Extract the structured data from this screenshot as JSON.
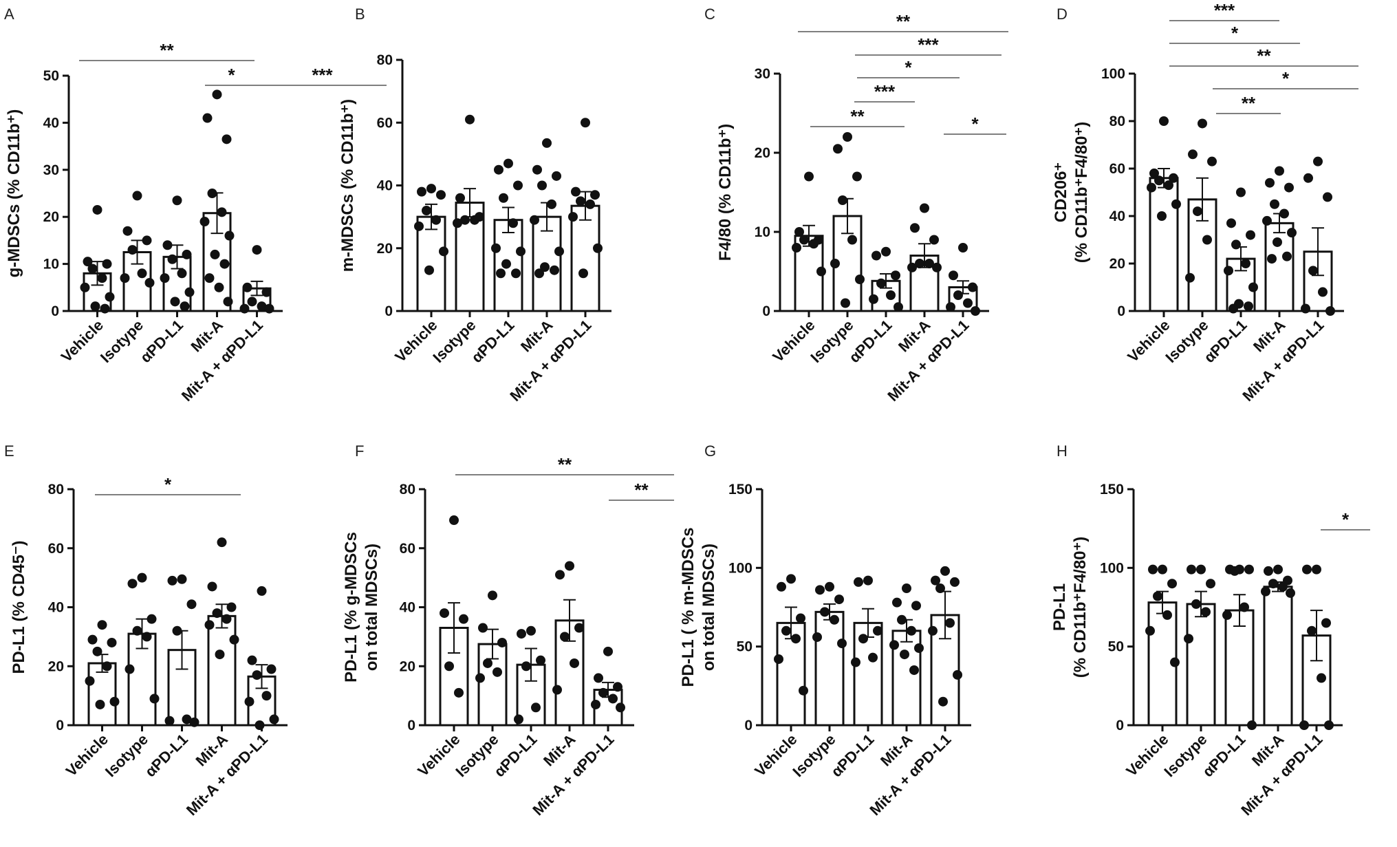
{
  "chart_data": [
    {
      "panel": "A",
      "type": "bar",
      "ylabel": "g-MDSCs (% CD11b⁺)",
      "ylim": [
        0,
        50
      ],
      "yticks": [
        0,
        10,
        20,
        30,
        40,
        50
      ],
      "categories": [
        "Vehicle",
        "Isotype",
        "αPD-L1",
        "Mit-A",
        "Mit-A + αPD-L1"
      ],
      "means": [
        8,
        12.5,
        11.5,
        20.8,
        4.8
      ],
      "sem": [
        2.5,
        2.5,
        2.5,
        4.3,
        1.5
      ],
      "points": [
        [
          21.5,
          10.5,
          10,
          9,
          7,
          5,
          3,
          1,
          0.5
        ],
        [
          24.5,
          17,
          15,
          13,
          8,
          7,
          6
        ],
        [
          23.5,
          14,
          12,
          11,
          8,
          7,
          4,
          2,
          1
        ],
        [
          46,
          41,
          36.5,
          25,
          21,
          19,
          16,
          12,
          10,
          7,
          5,
          2
        ],
        [
          13,
          5,
          4,
          2,
          1,
          0.5,
          0.5
        ]
      ],
      "significance": [
        {
          "from": "Vehicle",
          "to": "Mit-A",
          "label": "**"
        },
        {
          "from": "αPD-L1",
          "to": "Mit-A",
          "label": "*"
        },
        {
          "from": "Mit-A",
          "to": "Mit-A + αPD-L1",
          "label": "***"
        }
      ]
    },
    {
      "panel": "B",
      "type": "bar",
      "ylabel": "m-MDSCs (% CD11b⁺)",
      "ylim": [
        0,
        80
      ],
      "yticks": [
        0,
        20,
        40,
        60,
        80
      ],
      "categories": [
        "Vehicle",
        "Isotype",
        "αPD-L1",
        "Mit-A",
        "Mit-A + αPD-L1"
      ],
      "means": [
        30,
        34.5,
        29,
        30,
        33.5
      ],
      "sem": [
        4,
        4.5,
        4,
        4.5,
        4.5
      ],
      "points": [
        [
          39,
          38,
          37,
          32,
          29,
          27,
          19,
          13
        ],
        [
          61,
          36,
          30,
          29,
          29,
          28
        ],
        [
          47,
          45,
          40,
          36,
          28,
          20,
          19,
          15,
          12,
          12
        ],
        [
          53.5,
          45,
          43,
          40,
          34,
          29,
          19,
          14,
          13,
          12
        ],
        [
          60,
          38,
          37,
          35,
          34,
          30,
          20,
          12
        ]
      ],
      "significance": []
    },
    {
      "panel": "C",
      "type": "bar",
      "ylabel": "F4/80 (% CD11b⁺)",
      "ylim": [
        0,
        30
      ],
      "yticks": [
        0,
        10,
        20,
        30
      ],
      "categories": [
        "Vehicle",
        "Isotype",
        "αPD-L1",
        "Mit-A",
        "Mit-A + αPD-L1"
      ],
      "means": [
        9.5,
        12,
        3.8,
        7,
        3
      ],
      "sem": [
        1.3,
        2.2,
        0.9,
        1.5,
        0.8
      ],
      "points": [
        [
          17,
          10,
          9,
          9,
          8.5,
          8,
          5
        ],
        [
          22,
          20.5,
          17,
          14,
          9,
          6,
          4,
          1
        ],
        [
          7.5,
          7,
          4.5,
          3.5,
          2,
          1.5,
          0.5
        ],
        [
          13,
          10.5,
          9,
          6,
          6,
          5.5,
          5.5
        ],
        [
          8,
          4.5,
          3,
          2,
          1,
          0.5,
          0
        ]
      ],
      "significance": [
        {
          "from": "Vehicle",
          "to": "Mit-A + αPD-L1",
          "label": "**"
        },
        {
          "from": "Isotype",
          "to": "Mit-A + αPD-L1",
          "label": "***"
        },
        {
          "from": "Isotype",
          "to": "Mit-A",
          "label": "*"
        },
        {
          "from": "Isotype",
          "to": "αPD-L1",
          "label": "***"
        },
        {
          "from": "Vehicle",
          "to": "αPD-L1",
          "label": "**"
        },
        {
          "from": "Mit-A",
          "to": "Mit-A + αPD-L1",
          "label": "*"
        }
      ]
    },
    {
      "panel": "D",
      "type": "bar",
      "ylabel": "CD206⁺",
      "ylabel2": "(% CD11b⁺F4/80⁺)",
      "ylim": [
        0,
        100
      ],
      "yticks": [
        0,
        20,
        40,
        60,
        80,
        100
      ],
      "categories": [
        "Vehicle",
        "Isotype",
        "αPD-L1",
        "Mit-A",
        "Mit-A + αPD-L1"
      ],
      "means": [
        56,
        47,
        22,
        37,
        25
      ],
      "sem": [
        4,
        9,
        5,
        4,
        10
      ],
      "points": [
        [
          80,
          58,
          56,
          55,
          53,
          52,
          45,
          40
        ],
        [
          79,
          66,
          63,
          42,
          30,
          14
        ],
        [
          50,
          37,
          32,
          28,
          20,
          17,
          10,
          3,
          2,
          1
        ],
        [
          59,
          54,
          52,
          45,
          41,
          38,
          33,
          29,
          23,
          22
        ],
        [
          63,
          56,
          48,
          17,
          8,
          1,
          0
        ]
      ],
      "significance": [
        {
          "from": "Vehicle",
          "to": "Mit-A",
          "label": "***"
        },
        {
          "from": "Vehicle",
          "to": "Mit-A",
          "label": "*"
        },
        {
          "from": "Vehicle",
          "to": "Mit-A + αPD-L1",
          "label": "**"
        },
        {
          "from": "Isotype",
          "to": "Mit-A + αPD-L1",
          "label": "*"
        },
        {
          "from": "Isotype",
          "to": "αPD-L1",
          "label": "**"
        }
      ]
    },
    {
      "panel": "E",
      "type": "bar",
      "ylabel": "PD-L1 (% CD45⁻)",
      "ylim": [
        0,
        80
      ],
      "yticks": [
        0,
        20,
        40,
        60,
        80
      ],
      "categories": [
        "Vehicle",
        "Isotype",
        "αPD-L1",
        "Mit-A",
        "Mit-A + αPD-L1"
      ],
      "means": [
        21,
        31,
        25.5,
        37,
        16.5
      ],
      "sem": [
        3,
        5,
        6.5,
        4,
        4
      ],
      "points": [
        [
          34,
          29,
          28,
          25,
          20,
          15,
          8,
          7
        ],
        [
          50,
          48,
          36,
          32,
          30,
          19,
          9
        ],
        [
          49.5,
          49,
          41,
          32,
          2,
          1.5,
          1
        ],
        [
          62,
          47,
          40,
          38,
          36,
          34,
          29,
          24
        ],
        [
          45.5,
          22,
          19,
          17,
          10,
          8,
          2,
          0
        ]
      ],
      "significance": [
        {
          "from": "Vehicle",
          "to": "Mit-A",
          "label": "*"
        }
      ]
    },
    {
      "panel": "F",
      "type": "bar",
      "ylabel": "PD-L1 (% g-MDSCs",
      "ylabel2": "on total MDSCs)",
      "ylim": [
        0,
        80
      ],
      "yticks": [
        0,
        20,
        40,
        60,
        80
      ],
      "categories": [
        "Vehicle",
        "Isotype",
        "αPD-L1",
        "Mit-A",
        "Mit-A + αPD-L1"
      ],
      "means": [
        33,
        27.5,
        20.5,
        35.5,
        12
      ],
      "sem": [
        8.5,
        5,
        5.5,
        7,
        2.5
      ],
      "points": [
        [
          69.5,
          38,
          36,
          20,
          11
        ],
        [
          44,
          33,
          28,
          21,
          18,
          16
        ],
        [
          32,
          31,
          22,
          20,
          6,
          2
        ],
        [
          54,
          51,
          33,
          30,
          21,
          12
        ],
        [
          25,
          16,
          13,
          11,
          9,
          7,
          6
        ]
      ],
      "significance": [
        {
          "from": "Vehicle",
          "to": "Mit-A + αPD-L1",
          "label": "**"
        },
        {
          "from": "Mit-A",
          "to": "Mit-A + αPD-L1",
          "label": "**"
        }
      ]
    },
    {
      "panel": "G",
      "type": "bar",
      "ylabel": "PD-L1 ( % m-MDSCs",
      "ylabel2": "on total MDSCs)",
      "ylim": [
        0,
        150
      ],
      "yticks": [
        0,
        50,
        100,
        150
      ],
      "categories": [
        "Vehicle",
        "Isotype",
        "αPD-L1",
        "Mit-A",
        "Mit-A + αPD-L1"
      ],
      "means": [
        65,
        72,
        65,
        60,
        70
      ],
      "sem": [
        10,
        5,
        9,
        7,
        15
      ],
      "points": [
        [
          93,
          88,
          68,
          60,
          55,
          42,
          22
        ],
        [
          88,
          86,
          80,
          72,
          67,
          56,
          52
        ],
        [
          92,
          91,
          60,
          55,
          43,
          40
        ],
        [
          87,
          78,
          76,
          67,
          60,
          51,
          49,
          45,
          35
        ],
        [
          98,
          92,
          91,
          87,
          65,
          60,
          32,
          15
        ]
      ],
      "significance": []
    },
    {
      "panel": "H",
      "type": "bar",
      "ylabel": "PD-L1",
      "ylabel2": "(% CD11b⁺F4/80⁺)",
      "ylim": [
        0,
        150
      ],
      "yticks": [
        0,
        50,
        100,
        150
      ],
      "categories": [
        "Vehicle",
        "Isotype",
        "αPD-L1",
        "Mit-A",
        "Mit-A + αPD-L1"
      ],
      "means": [
        78,
        77,
        73,
        88,
        57
      ],
      "sem": [
        7,
        8,
        10,
        3,
        16
      ],
      "points": [
        [
          99,
          99,
          90,
          82,
          70,
          60,
          40
        ],
        [
          99,
          99,
          90,
          77,
          72,
          55
        ],
        [
          99,
          99,
          99,
          98,
          75,
          70,
          0
        ],
        [
          99,
          98,
          92,
          90,
          88,
          85,
          84
        ],
        [
          99,
          99,
          65,
          60,
          30,
          0,
          0
        ]
      ],
      "significance": [
        {
          "from": "Mit-A",
          "to": "Mit-A + αPD-L1",
          "label": "*"
        }
      ]
    }
  ]
}
